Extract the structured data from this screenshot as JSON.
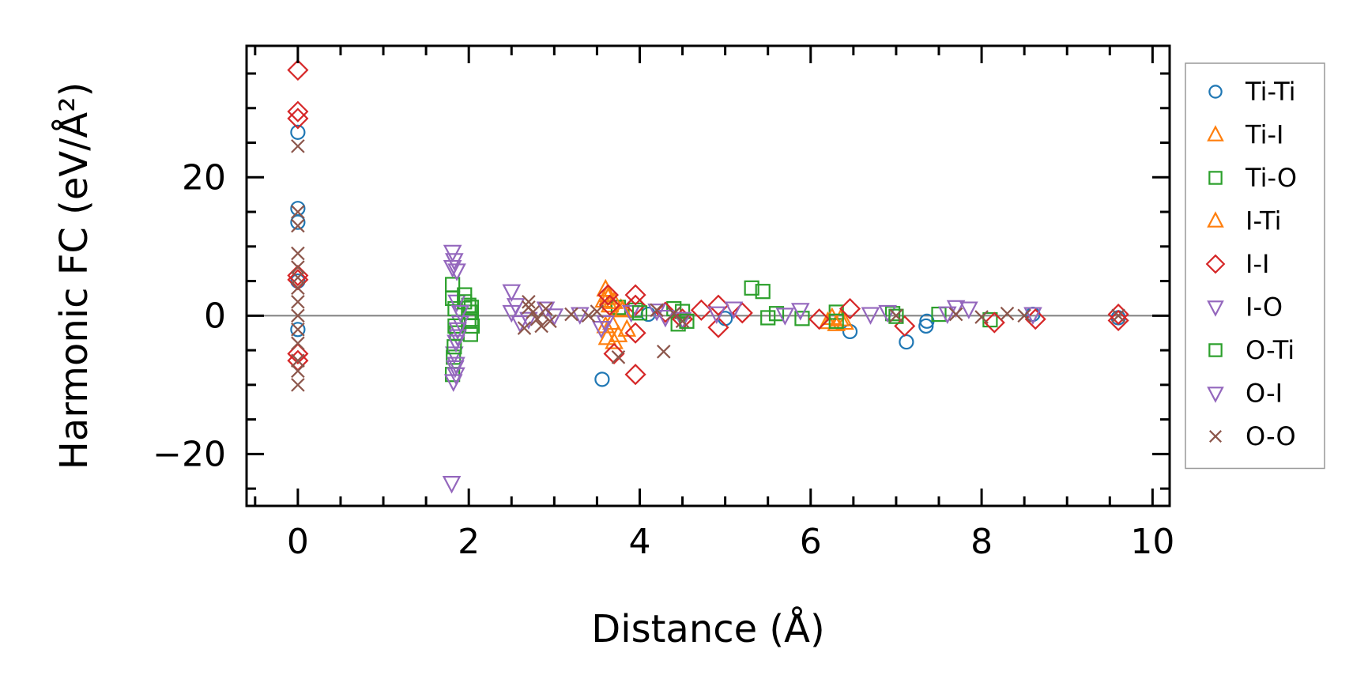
{
  "chart_data": {
    "type": "scatter",
    "xlabel": "Distance (Å)",
    "ylabel": "Harmonic FC (eV/Å²)",
    "xlim": [
      -0.6,
      10.2
    ],
    "ylim": [
      -27.5,
      39
    ],
    "x_ticks": [
      0,
      2,
      4,
      6,
      8,
      10
    ],
    "x_tick_labels": [
      "0",
      "2",
      "4",
      "6",
      "8",
      "10"
    ],
    "y_ticks": [
      -20,
      0,
      20
    ],
    "y_tick_labels": [
      "−20",
      "0",
      "20"
    ],
    "reference_line": 0,
    "legend_position": "outside-right",
    "series": [
      {
        "name": "Ti-Ti",
        "marker": "circle",
        "color": "#1f77b4",
        "points": [
          [
            0,
            26.5
          ],
          [
            0,
            15.5
          ],
          [
            0,
            13.5
          ],
          [
            0,
            5
          ],
          [
            0,
            -2
          ],
          [
            3.56,
            -9.2
          ],
          [
            6.46,
            -2.3
          ],
          [
            7.12,
            -3.8
          ],
          [
            7.35,
            -1.5
          ],
          [
            7.36,
            -0.8
          ],
          [
            4.1,
            0.2
          ],
          [
            5.0,
            -0.4
          ],
          [
            8.6,
            0.2
          ],
          [
            9.6,
            -0.3
          ]
        ]
      },
      {
        "name": "Ti-I",
        "marker": "triangle-up",
        "color": "#ff7f0e",
        "points": [
          [
            3.6,
            3.8
          ],
          [
            3.62,
            3.0
          ],
          [
            3.58,
            2.2
          ],
          [
            3.65,
            1.5
          ],
          [
            3.6,
            -1.5
          ],
          [
            3.62,
            -3.2
          ],
          [
            3.7,
            -3.8
          ],
          [
            3.78,
            1.0
          ],
          [
            3.85,
            -2.0
          ],
          [
            6.3,
            -1.2
          ],
          [
            6.35,
            -0.5
          ],
          [
            6.2,
            -0.9
          ]
        ]
      },
      {
        "name": "Ti-O",
        "marker": "square",
        "color": "#2ca02c",
        "points": [
          [
            1.81,
            4.5
          ],
          [
            1.81,
            -8.5
          ],
          [
            1.82,
            -6.0
          ],
          [
            1.84,
            1.0
          ],
          [
            1.86,
            -2.5
          ],
          [
            1.95,
            3.0
          ],
          [
            2.0,
            1.5
          ],
          [
            2.02,
            0.5
          ],
          [
            2.03,
            -0.5
          ],
          [
            2.04,
            -1.5
          ],
          [
            2.02,
            -2.7
          ],
          [
            3.75,
            1.2
          ],
          [
            3.95,
            0.8
          ],
          [
            4.4,
            1.0
          ],
          [
            4.45,
            -1.2
          ],
          [
            4.5,
            0.6
          ],
          [
            5.31,
            4.0
          ],
          [
            5.44,
            3.5
          ],
          [
            5.6,
            0.3
          ],
          [
            5.9,
            -0.4
          ],
          [
            6.3,
            0.5
          ],
          [
            6.96,
            0.3
          ],
          [
            8.1,
            -0.6
          ],
          [
            7.5,
            0.2
          ]
        ]
      },
      {
        "name": "I-Ti",
        "marker": "triangle-up",
        "color": "#ff7f0e",
        "points": [
          [
            3.63,
            2.6
          ],
          [
            3.67,
            -1.0
          ],
          [
            3.7,
            2.0
          ],
          [
            3.75,
            -2.8
          ],
          [
            3.8,
            0.8
          ],
          [
            6.25,
            -0.3
          ],
          [
            6.4,
            -1.0
          ]
        ]
      },
      {
        "name": "I-I",
        "marker": "diamond",
        "color": "#d62728",
        "points": [
          [
            0,
            35.5
          ],
          [
            0,
            29.5
          ],
          [
            0,
            28.5
          ],
          [
            0,
            5.8
          ],
          [
            0,
            5.2
          ],
          [
            0,
            -5.5
          ],
          [
            0,
            -6.5
          ],
          [
            3.63,
            3.0
          ],
          [
            3.95,
            3.0
          ],
          [
            3.95,
            -8.5
          ],
          [
            3.95,
            1.5
          ],
          [
            3.95,
            -2.5
          ],
          [
            3.7,
            -5.5
          ],
          [
            3.65,
            1.5
          ],
          [
            4.3,
            0.5
          ],
          [
            4.5,
            -0.5
          ],
          [
            4.72,
            0.8
          ],
          [
            4.92,
            1.5
          ],
          [
            4.92,
            -1.7
          ],
          [
            5.2,
            0.4
          ],
          [
            6.1,
            -0.5
          ],
          [
            6.46,
            1.0
          ],
          [
            7.1,
            -1.5
          ],
          [
            8.15,
            -1.0
          ],
          [
            8.63,
            -0.5
          ],
          [
            9.6,
            0.2
          ],
          [
            9.6,
            -0.7
          ]
        ]
      },
      {
        "name": "I-O",
        "marker": "triangle-down",
        "color": "#9467bd",
        "points": [
          [
            1.81,
            9.2
          ],
          [
            1.83,
            8.0
          ],
          [
            1.86,
            6.5
          ],
          [
            1.83,
            -5.5
          ],
          [
            1.84,
            -7.5
          ],
          [
            1.85,
            -8.5
          ],
          [
            1.82,
            -9.5
          ],
          [
            1.8,
            -24.2
          ],
          [
            1.86,
            2.0
          ],
          [
            1.9,
            -1.0
          ],
          [
            1.87,
            -3.0
          ],
          [
            2.5,
            3.5
          ],
          [
            2.5,
            0.5
          ],
          [
            2.6,
            -1.0
          ],
          [
            2.9,
            1.0
          ],
          [
            3.0,
            0.0
          ],
          [
            3.55,
            -1.8
          ],
          [
            3.9,
            0.5
          ],
          [
            4.2,
            0.7
          ],
          [
            4.5,
            -0.5
          ],
          [
            5.1,
            1.0
          ],
          [
            5.88,
            0.8
          ],
          [
            6.9,
            0.5
          ],
          [
            7.7,
            1.2
          ],
          [
            7.85,
            1.0
          ],
          [
            8.6,
            0.2
          ]
        ]
      },
      {
        "name": "O-Ti",
        "marker": "square",
        "color": "#2ca02c",
        "points": [
          [
            1.81,
            2.5
          ],
          [
            1.83,
            -4.5
          ],
          [
            1.84,
            -1.5
          ],
          [
            1.95,
            2.0
          ],
          [
            2.0,
            -0.8
          ],
          [
            2.03,
            1.2
          ],
          [
            4.0,
            0.4
          ],
          [
            4.55,
            -0.8
          ],
          [
            5.5,
            -0.3
          ],
          [
            6.3,
            -0.8
          ],
          [
            7.0,
            -0.1
          ]
        ]
      },
      {
        "name": "O-I",
        "marker": "triangle-down",
        "color": "#9467bd",
        "points": [
          [
            1.81,
            7.0
          ],
          [
            1.85,
            -7.0
          ],
          [
            1.85,
            -3.8
          ],
          [
            1.87,
            -2.0
          ],
          [
            1.9,
            0.5
          ],
          [
            2.55,
            1.5
          ],
          [
            2.7,
            -0.5
          ],
          [
            3.3,
            0.2
          ],
          [
            3.6,
            -1.0
          ],
          [
            4.3,
            -0.2
          ],
          [
            4.9,
            0.3
          ],
          [
            5.7,
            0.1
          ],
          [
            6.7,
            0.2
          ],
          [
            7.6,
            0.3
          ]
        ]
      },
      {
        "name": "O-O",
        "marker": "x",
        "color": "#8c564b",
        "points": [
          [
            0,
            24.5
          ],
          [
            0,
            15.0
          ],
          [
            0,
            13.0
          ],
          [
            0,
            9.0
          ],
          [
            0,
            7.0
          ],
          [
            0,
            5.5
          ],
          [
            0,
            4.0
          ],
          [
            0,
            2.0
          ],
          [
            0,
            0.0
          ],
          [
            0,
            -2.0
          ],
          [
            0,
            -4.0
          ],
          [
            0,
            -6.5
          ],
          [
            0,
            -8.0
          ],
          [
            0,
            -10.0
          ],
          [
            2.7,
            2.0
          ],
          [
            2.75,
            0.5
          ],
          [
            2.8,
            -0.5
          ],
          [
            2.85,
            -1.5
          ],
          [
            2.9,
            1.0
          ],
          [
            2.95,
            -0.8
          ],
          [
            2.65,
            -1.8
          ],
          [
            2.7,
            1.2
          ],
          [
            3.2,
            0.2
          ],
          [
            3.4,
            0.0
          ],
          [
            3.5,
            0.6
          ],
          [
            3.75,
            -6.0
          ],
          [
            4.28,
            -5.2
          ],
          [
            4.2,
            0.8
          ],
          [
            4.4,
            0.3
          ],
          [
            4.5,
            -0.8
          ],
          [
            7.0,
            0.0
          ],
          [
            7.7,
            0.2
          ],
          [
            8.0,
            -0.2
          ],
          [
            8.3,
            0.3
          ],
          [
            8.5,
            0.0
          ],
          [
            9.6,
            0.0
          ]
        ]
      }
    ]
  }
}
